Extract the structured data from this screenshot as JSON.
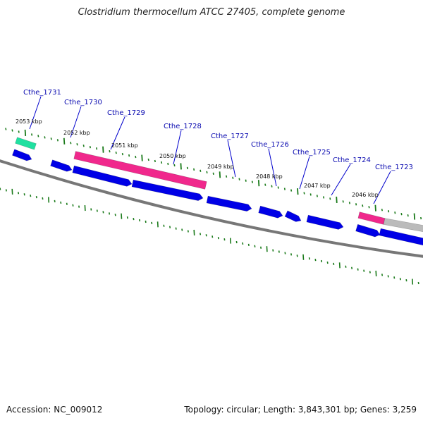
{
  "title": "Clostridium thermocellum ATCC 27405, complete genome",
  "footer": {
    "accession": "Accession: NC_009012",
    "summary": "Topology: circular; Length: 3,843,301 bp; Genes: 3,259"
  },
  "colors": {
    "cds": "#0000e6",
    "pink_feature": "#f0288c",
    "teal_feature": "#20e0a0",
    "gray_feature": "#bbbbbb",
    "backbone": "#777777",
    "tick": "#1a7a1a",
    "label_line": "#0000cc"
  },
  "scale_labels": [
    {
      "label": "2053 kbp",
      "kbp": 2053
    },
    {
      "label": "2052 kbp",
      "kbp": 2052
    },
    {
      "label": "2051 kbp",
      "kbp": 2051
    },
    {
      "label": "2050 kbp",
      "kbp": 2050
    },
    {
      "label": "2049 kbp",
      "kbp": 2049
    },
    {
      "label": "2048 kbp",
      "kbp": 2048
    },
    {
      "label": "2047 kbp",
      "kbp": 2047
    },
    {
      "label": "2046 kbp",
      "kbp": 2046
    }
  ],
  "gene_labels": [
    {
      "name": "Cthe_1731"
    },
    {
      "name": "Cthe_1730"
    },
    {
      "name": "Cthe_1729"
    },
    {
      "name": "Cthe_1728"
    },
    {
      "name": "Cthe_1727"
    },
    {
      "name": "Cthe_1726"
    },
    {
      "name": "Cthe_1725"
    },
    {
      "name": "Cthe_1724"
    },
    {
      "name": "Cthe_1723"
    }
  ]
}
